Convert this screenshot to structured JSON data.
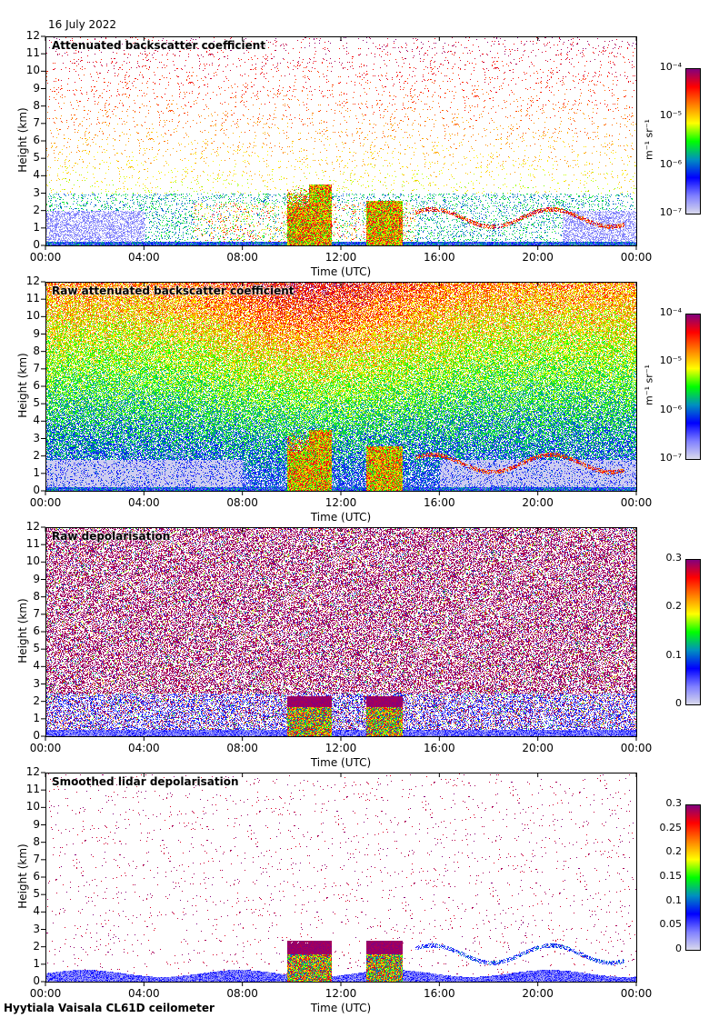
{
  "header": {
    "date": "16 July 2022"
  },
  "footer": {
    "site": "Hyytiala Vaisala CL61D ceilometer"
  },
  "chart_data": [
    {
      "type": "heatmap",
      "title": "Attenuated backscatter coefficient",
      "xlabel": "Time (UTC)",
      "ylabel": "Height (km)",
      "xlim": [
        0,
        24
      ],
      "ylim": [
        0,
        12
      ],
      "xticks": [
        "00:00",
        "04:00",
        "08:00",
        "12:00",
        "16:00",
        "20:00",
        "00:00"
      ],
      "yticks": [
        "0",
        "1",
        "2",
        "3",
        "4",
        "5",
        "6",
        "7",
        "8",
        "9",
        "10",
        "11",
        "12"
      ],
      "colorbar": {
        "scale": "log",
        "range": [
          1e-07,
          0.0001
        ],
        "ticks": [
          "10⁻⁷",
          "10⁻⁶",
          "10⁻⁵",
          "10⁻⁴"
        ],
        "unit": "m⁻¹ sr⁻¹"
      },
      "mode": "filtered"
    },
    {
      "type": "heatmap",
      "title": "Raw attenuated backscatter coefficient",
      "xlabel": "Time (UTC)",
      "ylabel": "Height (km)",
      "xlim": [
        0,
        24
      ],
      "ylim": [
        0,
        12
      ],
      "xticks": [
        "00:00",
        "04:00",
        "08:00",
        "12:00",
        "16:00",
        "20:00",
        "00:00"
      ],
      "yticks": [
        "0",
        "1",
        "2",
        "3",
        "4",
        "5",
        "6",
        "7",
        "8",
        "9",
        "10",
        "11",
        "12"
      ],
      "colorbar": {
        "scale": "log",
        "range": [
          1e-07,
          0.0001
        ],
        "ticks": [
          "10⁻⁷",
          "10⁻⁶",
          "10⁻⁵",
          "10⁻⁴"
        ],
        "unit": "m⁻¹ sr⁻¹"
      },
      "mode": "raw"
    },
    {
      "type": "heatmap",
      "title": "Raw depolarisation",
      "xlabel": "Time (UTC)",
      "ylabel": "Height (km)",
      "xlim": [
        0,
        24
      ],
      "ylim": [
        0,
        12
      ],
      "xticks": [
        "00:00",
        "04:00",
        "08:00",
        "12:00",
        "16:00",
        "20:00",
        "00:00"
      ],
      "yticks": [
        "0",
        "1",
        "2",
        "3",
        "4",
        "5",
        "6",
        "7",
        "8",
        "9",
        "10",
        "11",
        "12"
      ],
      "colorbar": {
        "scale": "linear",
        "range": [
          0,
          0.3
        ],
        "ticks": [
          "0",
          "0.1",
          "0.2",
          "0.3"
        ],
        "unit": ""
      },
      "mode": "rawdepol"
    },
    {
      "type": "heatmap",
      "title": "Smoothed lidar depolarisation",
      "xlabel": "Time (UTC)",
      "ylabel": "Height (km)",
      "xlim": [
        0,
        24
      ],
      "ylim": [
        0,
        12
      ],
      "xticks": [
        "00:00",
        "04:00",
        "08:00",
        "12:00",
        "16:00",
        "20:00",
        "00:00"
      ],
      "yticks": [
        "0",
        "1",
        "2",
        "3",
        "4",
        "5",
        "6",
        "7",
        "8",
        "9",
        "10",
        "11",
        "12"
      ],
      "colorbar": {
        "scale": "linear",
        "range": [
          0,
          0.3
        ],
        "ticks": [
          "0",
          "0.05",
          "0.1",
          "0.15",
          "0.2",
          "0.25",
          "0.3"
        ],
        "unit": ""
      },
      "mode": "depol"
    }
  ],
  "features": {
    "cloud_blocks_hours_km": [
      [
        9.8,
        11.6,
        0,
        3.5
      ],
      [
        13.0,
        14.5,
        0,
        2.6
      ]
    ],
    "low_cloud_layer_hours_km": [
      15,
      23.5,
      1.2,
      2.3
    ]
  },
  "colors": {
    "colormap": [
      "#dcdcec",
      "#8080ff",
      "#0000ff",
      "#0090c0",
      "#00ff00",
      "#ffff00",
      "#ff8000",
      "#ff0000",
      "#800080"
    ]
  }
}
